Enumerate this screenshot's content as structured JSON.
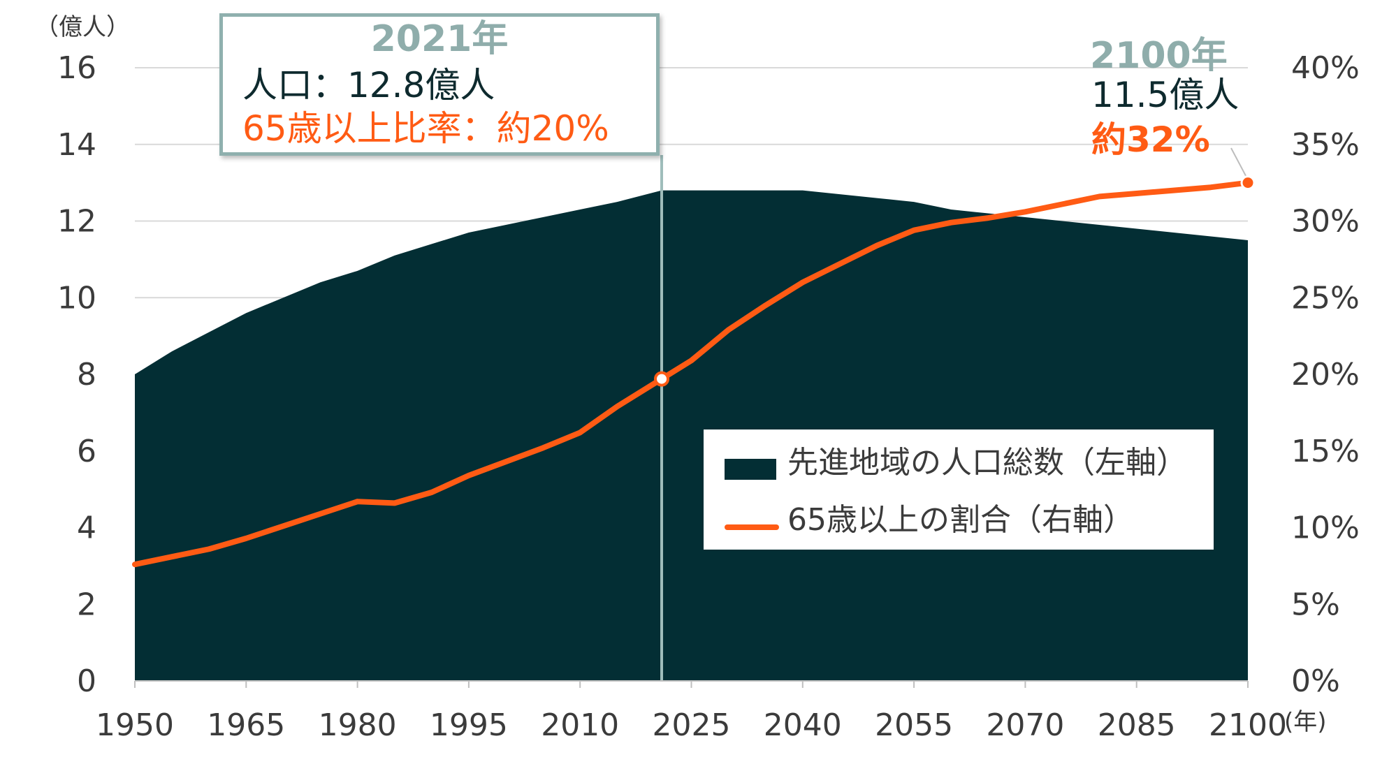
{
  "chart_data": {
    "type": "area+line",
    "left_unit": "（億人）",
    "x_unit": "(年)",
    "x_ticks": [
      "1950",
      "1965",
      "1980",
      "1995",
      "2010",
      "2025",
      "2040",
      "2055",
      "2070",
      "2085",
      "2100"
    ],
    "x_range": [
      1950,
      2100
    ],
    "left_axis": {
      "min": 0,
      "max": 16,
      "ticks": [
        "0",
        "2",
        "4",
        "6",
        "8",
        "10",
        "12",
        "14",
        "16"
      ]
    },
    "right_axis": {
      "min": 0,
      "max": 40,
      "ticks": [
        "0%",
        "5%",
        "10%",
        "15%",
        "20%",
        "25%",
        "30%",
        "35%",
        "40%"
      ]
    },
    "series": [
      {
        "name": "先進地域の人口総数（左軸）",
        "axis": "left",
        "kind": "area",
        "color": "#032e34",
        "x": [
          1950,
          1955,
          1960,
          1965,
          1970,
          1975,
          1980,
          1985,
          1990,
          1995,
          2000,
          2005,
          2010,
          2015,
          2021,
          2025,
          2030,
          2035,
          2040,
          2045,
          2050,
          2055,
          2060,
          2065,
          2070,
          2075,
          2080,
          2085,
          2090,
          2095,
          2100
        ],
        "values": [
          8.0,
          8.6,
          9.1,
          9.6,
          10.0,
          10.4,
          10.7,
          11.1,
          11.4,
          11.7,
          11.9,
          12.1,
          12.3,
          12.5,
          12.8,
          12.8,
          12.8,
          12.8,
          12.8,
          12.7,
          12.6,
          12.5,
          12.3,
          12.2,
          12.1,
          12.0,
          11.9,
          11.8,
          11.7,
          11.6,
          11.5
        ]
      },
      {
        "name": "65歳以上の割合（右軸）",
        "axis": "right",
        "kind": "line",
        "color": "#ff5b14",
        "x": [
          1950,
          1955,
          1960,
          1965,
          1970,
          1975,
          1980,
          1985,
          1990,
          1995,
          2000,
          2005,
          2010,
          2015,
          2021,
          2025,
          2030,
          2035,
          2040,
          2045,
          2050,
          2055,
          2060,
          2065,
          2070,
          2075,
          2080,
          2085,
          2090,
          2095,
          2100
        ],
        "values": [
          7.6,
          8.1,
          8.6,
          9.3,
          10.1,
          10.9,
          11.7,
          11.6,
          12.3,
          13.4,
          14.3,
          15.2,
          16.2,
          17.9,
          19.7,
          20.9,
          22.9,
          24.5,
          26.0,
          27.2,
          28.4,
          29.4,
          29.9,
          30.2,
          30.6,
          31.1,
          31.6,
          31.8,
          32.0,
          32.2,
          32.5
        ]
      }
    ],
    "callout": {
      "year_label": "2021年",
      "population": "人口：12.8億人",
      "ratio": "65歳以上比率：約20%",
      "x": 2021
    },
    "end_label": {
      "year_label": "2100年",
      "population": "11.5億人",
      "ratio": "約32%"
    },
    "legend": [
      "先進地域の人口総数（左軸）",
      "65歳以上の割合（右軸）"
    ]
  }
}
